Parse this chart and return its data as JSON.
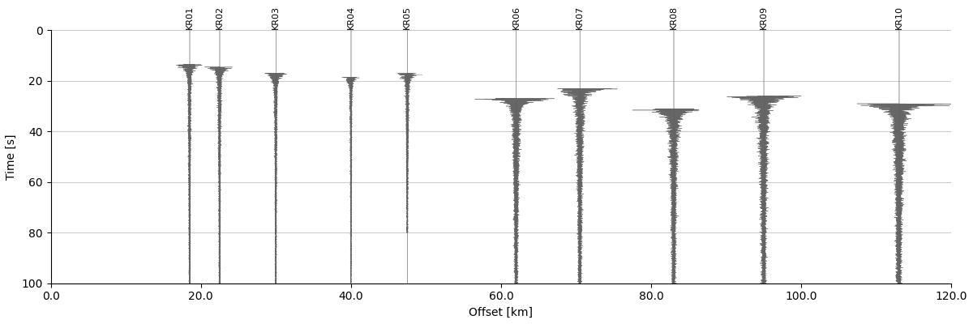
{
  "stations": [
    "KR01",
    "KR02",
    "KR03",
    "KR04",
    "KR05",
    "KR06",
    "KR07",
    "KR08",
    "KR09",
    "KR10"
  ],
  "offsets": [
    18.5,
    22.5,
    30.0,
    40.0,
    47.5,
    62.0,
    70.5,
    83.0,
    95.0,
    113.0
  ],
  "arrival_times": [
    13.5,
    14.5,
    17.0,
    18.5,
    17.0,
    27.0,
    23.0,
    31.0,
    26.0,
    29.0
  ],
  "coda_end_times": [
    100,
    100,
    100,
    100,
    80,
    100,
    100,
    100,
    100,
    100
  ],
  "peak_amplitudes": [
    1.8,
    2.0,
    1.5,
    1.2,
    2.0,
    5.5,
    5.0,
    5.5,
    5.0,
    7.0
  ],
  "xlim": [
    0.0,
    120.0
  ],
  "ylim": [
    100,
    0
  ],
  "xlabel": "Offset [km]",
  "ylabel": "Time [s]",
  "waveform_color": "#555555",
  "ref_line_color": "#aaaaaa",
  "grid_color": "#cccccc",
  "background_color": "#ffffff",
  "fig_width": 12.0,
  "fig_height": 4.0,
  "dpi": 100
}
